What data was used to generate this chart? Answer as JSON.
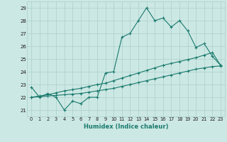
{
  "xlabel": "Humidex (Indice chaleur)",
  "x": [
    0,
    1,
    2,
    3,
    4,
    5,
    6,
    7,
    8,
    9,
    10,
    11,
    12,
    13,
    14,
    15,
    16,
    17,
    18,
    19,
    20,
    21,
    22,
    23
  ],
  "y_main": [
    22.8,
    22.0,
    22.3,
    22.0,
    21.0,
    21.7,
    21.5,
    22.0,
    22.0,
    23.9,
    24.0,
    26.7,
    27.0,
    28.0,
    29.0,
    28.0,
    28.2,
    27.5,
    28.0,
    27.2,
    25.9,
    26.2,
    25.2,
    24.5
  ],
  "y_line1": [
    22.0,
    22.1,
    22.2,
    22.35,
    22.5,
    22.6,
    22.7,
    22.85,
    23.0,
    23.1,
    23.3,
    23.5,
    23.7,
    23.9,
    24.1,
    24.3,
    24.5,
    24.65,
    24.8,
    24.95,
    25.1,
    25.3,
    25.5,
    24.5
  ],
  "y_line2": [
    22.0,
    22.05,
    22.1,
    22.15,
    22.2,
    22.25,
    22.3,
    22.4,
    22.5,
    22.6,
    22.7,
    22.85,
    23.0,
    23.15,
    23.3,
    23.45,
    23.6,
    23.75,
    23.9,
    24.05,
    24.2,
    24.3,
    24.4,
    24.45
  ],
  "ylim": [
    20.5,
    29.5
  ],
  "xlim": [
    -0.5,
    23.5
  ],
  "yticks": [
    21,
    22,
    23,
    24,
    25,
    26,
    27,
    28,
    29
  ],
  "xticks": [
    0,
    1,
    2,
    3,
    4,
    5,
    6,
    7,
    8,
    9,
    10,
    11,
    12,
    13,
    14,
    15,
    16,
    17,
    18,
    19,
    20,
    21,
    22,
    23
  ],
  "line_color": "#1a7a6e",
  "bg_color": "#cce8e4",
  "grid_color": "#aacfcb",
  "marker": "+"
}
